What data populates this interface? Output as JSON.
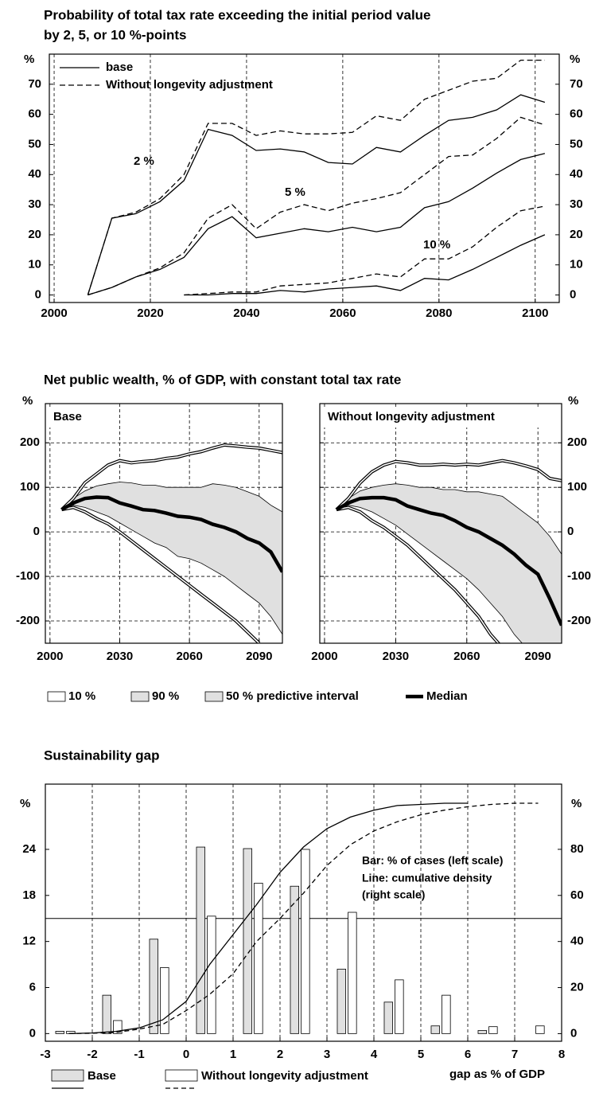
{
  "chart_data": [
    {
      "type": "line",
      "title": [
        "Probability of total tax rate exceeding the initial period value",
        "by 2, 5, or 10 %-points"
      ],
      "y_unit": "%",
      "x": [
        2007,
        2012,
        2017,
        2022,
        2027,
        2032,
        2037,
        2042,
        2047,
        2052,
        2057,
        2062,
        2067,
        2072,
        2077,
        2082,
        2087,
        2092,
        2097,
        2102
      ],
      "xlim": [
        1999,
        2105
      ],
      "xticks": [
        2000,
        2020,
        2040,
        2060,
        2080,
        2100
      ],
      "ylim": [
        -2.5,
        80
      ],
      "yticks": [
        0,
        10,
        20,
        30,
        40,
        50,
        60,
        70
      ],
      "grid": "x",
      "annotations": [
        "2 %",
        "5 %",
        "10 %"
      ],
      "series": [
        {
          "name": "base",
          "color": "#000000",
          "dashed": false,
          "values": [
            [
              0,
              25.5,
              27,
              31,
              38,
              55,
              53,
              48,
              48.5,
              47.5,
              44,
              43.5,
              49,
              47.5,
              53,
              58,
              59,
              61.5,
              66.5,
              64
            ],
            [
              0,
              2.5,
              6,
              8.5,
              12.5,
              22,
              26,
              19,
              20.5,
              22,
              21,
              22.5,
              21,
              22.5,
              29,
              31,
              35.5,
              40.5,
              45,
              47
            ],
            [
              null,
              null,
              null,
              null,
              0,
              0,
              0.5,
              0.5,
              1.5,
              1,
              2,
              2.5,
              3,
              1.5,
              5.5,
              5,
              8.5,
              12.5,
              16.5,
              20
            ]
          ]
        },
        {
          "name": "Without longevity adjustment",
          "color": "#000000",
          "dashed": true,
          "values": [
            [
              0,
              25.5,
              27.5,
              32,
              40,
              57,
              57,
              53,
              54.5,
              53.5,
              53.5,
              54,
              59.5,
              58,
              65,
              68,
              71,
              72,
              78,
              78
            ],
            [
              0,
              2.5,
              6,
              9,
              14,
              25.5,
              30,
              22,
              27.5,
              30,
              28,
              30.5,
              32,
              34,
              40,
              46,
              46.5,
              52,
              59,
              56.5
            ],
            [
              null,
              null,
              null,
              null,
              0,
              0.5,
              1,
              1,
              3,
              3.5,
              4,
              5.5,
              7,
              6,
              12,
              12,
              16,
              22.5,
              28,
              29.5
            ]
          ]
        }
      ]
    },
    {
      "type": "band",
      "title": "Net public wealth, % of GDP, with constant total tax rate",
      "y_unit": "%",
      "x": [
        2005,
        2010,
        2015,
        2020,
        2025,
        2030,
        2035,
        2040,
        2045,
        2050,
        2055,
        2060,
        2065,
        2070,
        2075,
        2080,
        2085,
        2090,
        2095,
        2100
      ],
      "xlim": [
        1998,
        2100
      ],
      "xticks": [
        2000,
        2030,
        2060,
        2090
      ],
      "ylim": [
        -250,
        288
      ],
      "yticks": [
        -200,
        -100,
        0,
        100,
        200
      ],
      "grid": "both",
      "band_color": "#e0e0e0",
      "legend": [
        "10 %",
        "90 %",
        "50 % predictive interval",
        "Median"
      ],
      "panels": [
        {
          "label": "Base",
          "p10": [
            50,
            55,
            45,
            30,
            18,
            0,
            -20,
            -40,
            -60,
            -80,
            -100,
            -120,
            -140,
            -160,
            -180,
            -200,
            -225,
            -250,
            null,
            null
          ],
          "p90": [
            50,
            75,
            110,
            130,
            150,
            160,
            155,
            158,
            160,
            165,
            168,
            175,
            180,
            188,
            195,
            193,
            190,
            188,
            183,
            178
          ],
          "upper": [
            50,
            75,
            92,
            103,
            108,
            112,
            110,
            105,
            105,
            100,
            100,
            100,
            100,
            108,
            105,
            100,
            90,
            80,
            60,
            45
          ],
          "lower": [
            50,
            60,
            55,
            45,
            35,
            20,
            5,
            -10,
            -25,
            -35,
            -55,
            -60,
            -70,
            -85,
            -100,
            -120,
            -140,
            -160,
            -190,
            -230
          ],
          "median": [
            50,
            65,
            75,
            78,
            77,
            65,
            58,
            50,
            48,
            42,
            35,
            33,
            28,
            17,
            10,
            0,
            -15,
            -25,
            -45,
            -90
          ]
        },
        {
          "label": "Without longevity adjustment",
          "p10": [
            50,
            55,
            45,
            25,
            10,
            -10,
            -30,
            -55,
            -80,
            -105,
            -130,
            -160,
            -190,
            -230,
            -260,
            null,
            null,
            null,
            null,
            null
          ],
          "p90": [
            50,
            75,
            110,
            135,
            150,
            158,
            155,
            150,
            150,
            152,
            150,
            152,
            150,
            155,
            160,
            155,
            148,
            140,
            120,
            115
          ],
          "upper": [
            50,
            75,
            92,
            100,
            105,
            108,
            105,
            100,
            100,
            95,
            95,
            90,
            90,
            85,
            80,
            60,
            40,
            20,
            -10,
            -50
          ],
          "lower": [
            50,
            60,
            55,
            45,
            30,
            15,
            -5,
            -25,
            -45,
            -65,
            -85,
            -105,
            -130,
            -160,
            -190,
            -230,
            -260,
            -290,
            -320,
            -350
          ],
          "median": [
            50,
            65,
            75,
            77,
            77,
            72,
            58,
            50,
            42,
            37,
            25,
            10,
            0,
            -15,
            -30,
            -50,
            -75,
            -95,
            -150,
            -210
          ]
        }
      ]
    },
    {
      "type": "bar-line",
      "title": "Sustainability gap",
      "y_unit": "%",
      "x_label": "gap as % of GDP",
      "xlim": [
        -3,
        8
      ],
      "xticks": [
        -3,
        -2,
        -1,
        0,
        1,
        2,
        3,
        4,
        5,
        6,
        7,
        8
      ],
      "ylim": [
        -1,
        32.5
      ],
      "yticks": [
        0,
        6,
        12,
        18,
        24
      ],
      "y2lim": [
        -3.3,
        108.3
      ],
      "y2ticks": [
        0,
        20,
        40,
        60,
        80
      ],
      "grid": "x",
      "annotations": [
        "Bar: % of cases (left scale)",
        "Line: cumulative density",
        "(right scale)"
      ],
      "hline": {
        "value": 50,
        "axis": "y2"
      },
      "bars": {
        "x": [
          -2.5,
          -1.5,
          -0.5,
          0.5,
          1.5,
          2.5,
          3.5,
          4.5,
          5.5,
          6.5,
          7.5
        ],
        "series": [
          {
            "name": "Base",
            "color": "#e0e0e0",
            "values": [
              0.3,
              5,
              12.3,
              24.3,
              24.1,
              19.2,
              8.4,
              4.1,
              1,
              0.4,
              0
            ]
          },
          {
            "name": "Without longevity adjustment",
            "color": "#ffffff",
            "values": [
              0.3,
              1.7,
              8.6,
              15.3,
              19.6,
              24,
              15.8,
              7,
              5,
              0.9,
              1
            ]
          }
        ]
      },
      "lines": {
        "x": [
          -2.5,
          -2,
          -1.5,
          -1,
          -0.5,
          0,
          0.5,
          1,
          1.5,
          2,
          2.5,
          3,
          3.5,
          4,
          4.5,
          5,
          5.5,
          6,
          6.5,
          7,
          7.5,
          8
        ],
        "series": [
          {
            "axis": "y2",
            "dashed": false,
            "values": [
              0,
              0.3,
              1,
              2.5,
              6,
              14,
              30,
              43,
              56,
              70,
              81,
              89,
              94,
              97,
              99,
              99.5,
              100,
              100,
              null,
              null,
              null,
              null
            ]
          },
          {
            "axis": "y2",
            "dashed": true,
            "values": [
              0,
              0.2,
              0.5,
              2,
              4,
              10,
              17,
              26,
              40,
              50,
              61,
              73,
              82,
              88,
              92,
              95,
              97,
              98.5,
              99.5,
              100,
              100,
              null
            ]
          }
        ]
      }
    }
  ]
}
